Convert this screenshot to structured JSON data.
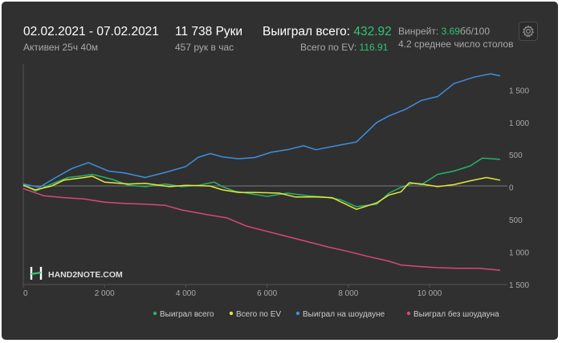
{
  "header": {
    "date_range": "02.02.2021 - 07.02.2021",
    "active_time": "Активен 25ч 40м",
    "hands": "11 738 Руки",
    "hands_per_hour": "457 рук в час",
    "won_total_label": "Выиграл всего:",
    "won_total_value": "432.92",
    "ev_total_label": "Всего по EV:",
    "ev_total_value": "116.91",
    "winrate_label": "Винрейт:",
    "winrate_value": "3.69",
    "winrate_unit": "бб/100",
    "avg_tables": "4.2 среднее число столов"
  },
  "watermark": "HAND2NOTE.COM",
  "colors": {
    "background": "#303030",
    "accent_green": "#2fc477",
    "series_won": "#27b36b",
    "series_ev": "#e6e63c",
    "series_showdown": "#3d8fe0",
    "series_no_showdown": "#d9477a"
  },
  "chart_data": {
    "type": "line",
    "x_ticks": [
      "0",
      "2 000",
      "4 000",
      "6 000",
      "8 000",
      "10 000"
    ],
    "y_ticks": [
      "1 500",
      "1 000",
      "500",
      "0",
      "500",
      "1 000",
      "1 500"
    ],
    "xlim": [
      0,
      11738
    ],
    "ylim": [
      -1500,
      1900
    ],
    "grid": false,
    "legend_position": "bottom",
    "series": [
      {
        "name": "Выиграл всего",
        "color": "#27b36b",
        "points": [
          [
            0,
            40
          ],
          [
            300,
            -60
          ],
          [
            700,
            50
          ],
          [
            1100,
            150
          ],
          [
            1500,
            180
          ],
          [
            1700,
            200
          ],
          [
            2200,
            120
          ],
          [
            2600,
            30
          ],
          [
            3000,
            10
          ],
          [
            3500,
            50
          ],
          [
            3900,
            10
          ],
          [
            4300,
            30
          ],
          [
            4700,
            80
          ],
          [
            4900,
            10
          ],
          [
            5200,
            -60
          ],
          [
            5600,
            -100
          ],
          [
            6000,
            -140
          ],
          [
            6500,
            -90
          ],
          [
            7000,
            -130
          ],
          [
            7400,
            -150
          ],
          [
            7800,
            -190
          ],
          [
            8200,
            -300
          ],
          [
            8700,
            -260
          ],
          [
            9000,
            -90
          ],
          [
            9300,
            0
          ],
          [
            9600,
            60
          ],
          [
            9800,
            40
          ],
          [
            10200,
            200
          ],
          [
            10600,
            250
          ],
          [
            11000,
            330
          ],
          [
            11300,
            450
          ],
          [
            11738,
            430
          ]
        ]
      },
      {
        "name": "Всего по EV",
        "color": "#e6e63c",
        "points": [
          [
            0,
            30
          ],
          [
            300,
            -40
          ],
          [
            700,
            20
          ],
          [
            1000,
            110
          ],
          [
            1500,
            150
          ],
          [
            1700,
            170
          ],
          [
            2000,
            80
          ],
          [
            2600,
            50
          ],
          [
            3000,
            60
          ],
          [
            3600,
            10
          ],
          [
            4000,
            30
          ],
          [
            4600,
            20
          ],
          [
            4900,
            -40
          ],
          [
            5300,
            -80
          ],
          [
            5700,
            -80
          ],
          [
            6300,
            -90
          ],
          [
            6700,
            -150
          ],
          [
            7200,
            -150
          ],
          [
            7600,
            -160
          ],
          [
            8200,
            -340
          ],
          [
            8700,
            -240
          ],
          [
            9000,
            -120
          ],
          [
            9300,
            -70
          ],
          [
            9500,
            70
          ],
          [
            9800,
            50
          ],
          [
            10200,
            10
          ],
          [
            10600,
            40
          ],
          [
            11000,
            100
          ],
          [
            11400,
            150
          ],
          [
            11738,
            110
          ]
        ]
      },
      {
        "name": "Выиграл на шоудауне",
        "color": "#3d8fe0",
        "points": [
          [
            0,
            50
          ],
          [
            400,
            0
          ],
          [
            800,
            150
          ],
          [
            1200,
            290
          ],
          [
            1600,
            380
          ],
          [
            2100,
            250
          ],
          [
            2500,
            220
          ],
          [
            3000,
            150
          ],
          [
            3500,
            230
          ],
          [
            4000,
            320
          ],
          [
            4300,
            460
          ],
          [
            4600,
            520
          ],
          [
            4900,
            470
          ],
          [
            5300,
            440
          ],
          [
            5700,
            460
          ],
          [
            6100,
            540
          ],
          [
            6500,
            580
          ],
          [
            6900,
            640
          ],
          [
            7200,
            580
          ],
          [
            7700,
            640
          ],
          [
            8200,
            700
          ],
          [
            8700,
            1000
          ],
          [
            9000,
            1100
          ],
          [
            9400,
            1200
          ],
          [
            9800,
            1340
          ],
          [
            10200,
            1400
          ],
          [
            10600,
            1600
          ],
          [
            11100,
            1700
          ],
          [
            11500,
            1750
          ],
          [
            11738,
            1720
          ]
        ]
      },
      {
        "name": "Выиграл без шоудауна",
        "color": "#d9477a",
        "points": [
          [
            0,
            -20
          ],
          [
            500,
            -130
          ],
          [
            1000,
            -160
          ],
          [
            1500,
            -180
          ],
          [
            2000,
            -230
          ],
          [
            2500,
            -250
          ],
          [
            3000,
            -260
          ],
          [
            3500,
            -280
          ],
          [
            3900,
            -350
          ],
          [
            4500,
            -420
          ],
          [
            5000,
            -470
          ],
          [
            5500,
            -600
          ],
          [
            6000,
            -680
          ],
          [
            6500,
            -760
          ],
          [
            7000,
            -840
          ],
          [
            7500,
            -920
          ],
          [
            8000,
            -990
          ],
          [
            8500,
            -1070
          ],
          [
            9000,
            -1140
          ],
          [
            9300,
            -1200
          ],
          [
            9700,
            -1220
          ],
          [
            10200,
            -1240
          ],
          [
            10700,
            -1250
          ],
          [
            11200,
            -1250
          ],
          [
            11738,
            -1280
          ]
        ]
      }
    ]
  }
}
